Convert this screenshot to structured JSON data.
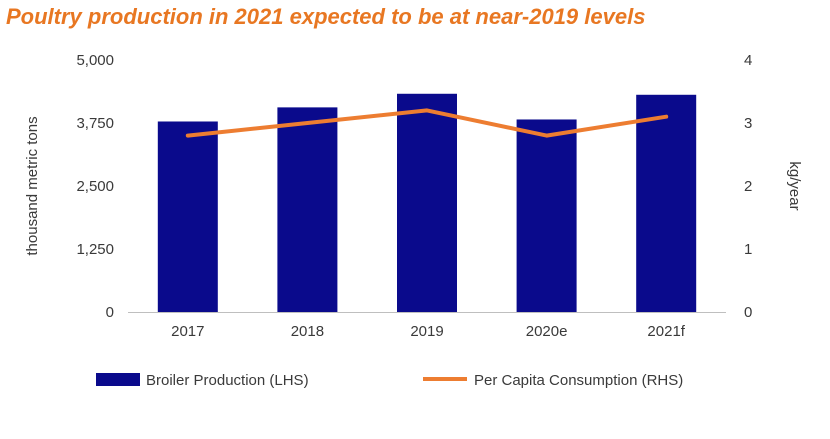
{
  "chart_data": {
    "type": "bar+line",
    "title": "Poultry production in 2021 expected to be at near-2019 levels",
    "categories": [
      "2017",
      "2018",
      "2019",
      "2020e",
      "2021f"
    ],
    "series": [
      {
        "name": "Broiler Production (LHS)",
        "type": "bar",
        "axis": "left",
        "values": [
          3780,
          4060,
          4330,
          3820,
          4310
        ],
        "color": "#0A0A8C"
      },
      {
        "name": "Per Capita Consumption (RHS)",
        "type": "line",
        "axis": "right",
        "values": [
          2.8,
          3.0,
          3.2,
          2.8,
          3.1
        ],
        "color": "#ED7D31"
      }
    ],
    "y_left": {
      "label": "thousand metric tons",
      "lim": [
        0,
        5000
      ],
      "ticks": [
        "0",
        "1,250",
        "2,500",
        "3,750",
        "5,000"
      ],
      "tick_values": [
        0,
        1250,
        2500,
        3750,
        5000
      ]
    },
    "y_right": {
      "label": "kg/year",
      "lim": [
        0,
        4
      ],
      "ticks": [
        "0",
        "1",
        "2",
        "3",
        "4"
      ],
      "tick_values": [
        0,
        1,
        2,
        3,
        4
      ]
    },
    "grid": false,
    "legend_position": "bottom"
  }
}
